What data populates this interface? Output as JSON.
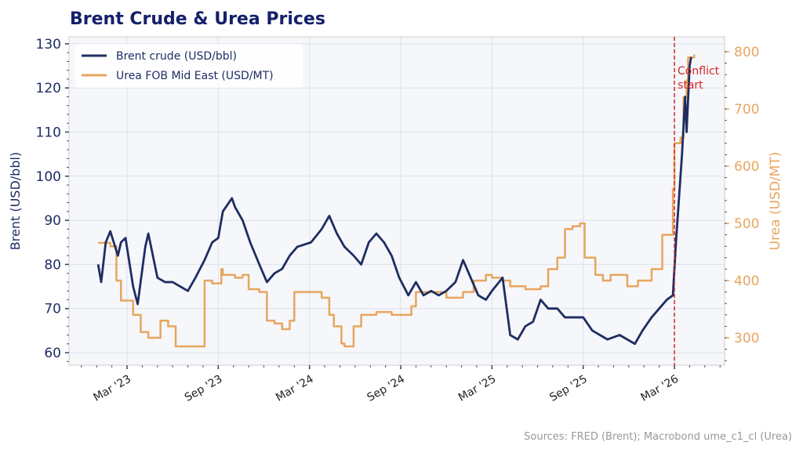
{
  "chart_data": {
    "type": "line",
    "title": "Brent Crude & Urea Prices",
    "source": "Sources: FRED (Brent); Macrobond ume_c1_cl (Urea)",
    "x_unit": "months since Jan 2023",
    "xlim": [
      -1.9,
      41.3
    ],
    "x_ticks": [
      {
        "m": 2,
        "label": "Mar '23"
      },
      {
        "m": 8,
        "label": "Sep '23"
      },
      {
        "m": 14,
        "label": "Mar '24"
      },
      {
        "m": 20,
        "label": "Sep '24"
      },
      {
        "m": 26,
        "label": "Mar '25"
      },
      {
        "m": 32,
        "label": "Sep '25"
      },
      {
        "m": 38,
        "label": "Mar '26"
      }
    ],
    "y_left": {
      "label": "Brent (USD/bbl)",
      "lim": [
        58,
        131
      ],
      "ticks": [
        60,
        70,
        80,
        90,
        100,
        110,
        120,
        130
      ],
      "color": "#1f2d63"
    },
    "y_right": {
      "label": "Urea (USD/MT)",
      "lim": [
        255,
        810
      ],
      "ticks": [
        300,
        400,
        500,
        600,
        700,
        800
      ],
      "color": "#e8a65f"
    },
    "grid": true,
    "legend_position": "top-left",
    "annotation": {
      "m": 38.0,
      "label": "Conflict start",
      "color": "#d62728"
    },
    "series": [
      {
        "name": "Brent crude (USD/bbl)",
        "axis": "left",
        "color": "#1f2d63",
        "x": [
          0.1,
          0.3,
          0.6,
          0.9,
          1.4,
          1.6,
          1.9,
          2.4,
          2.7,
          3.2,
          3.4,
          4.0,
          4.5,
          5.0,
          5.5,
          6.0,
          6.5,
          7.1,
          7.6,
          8.0,
          8.3,
          8.9,
          9.1,
          9.6,
          10.1,
          10.7,
          11.2,
          11.7,
          12.2,
          12.7,
          13.2,
          14.1,
          14.8,
          15.3,
          15.8,
          16.3,
          16.9,
          17.4,
          17.9,
          18.4,
          18.9,
          19.4,
          19.9,
          20.5,
          21.0,
          21.5,
          22.0,
          22.5,
          23.0,
          23.6,
          24.1,
          24.6,
          25.1,
          25.6,
          26.0,
          26.7,
          27.2,
          27.7,
          28.2,
          28.7,
          29.2,
          29.7,
          30.3,
          30.8,
          31.3,
          32.0,
          32.6,
          33.1,
          33.6,
          34.4,
          34.9,
          35.4,
          35.9,
          36.5,
          37.0,
          37.5,
          37.9,
          38.1,
          38.3,
          38.5,
          38.7,
          38.8,
          39.0,
          39.1
        ],
        "values": [
          80,
          76,
          85,
          87.5,
          82,
          85,
          86,
          75,
          71,
          84,
          87,
          77,
          76,
          76,
          75,
          74,
          77,
          81,
          85,
          86,
          92,
          95,
          93,
          90,
          85,
          80,
          76,
          78,
          79,
          82,
          84,
          85,
          88,
          91,
          87,
          84,
          82,
          80,
          85,
          87,
          85,
          82,
          77,
          73,
          76,
          73,
          74,
          73,
          74,
          76,
          81,
          77,
          73,
          72,
          74,
          77,
          64,
          63,
          66,
          67,
          72,
          70,
          70,
          68,
          68,
          68,
          65,
          64,
          63,
          64,
          63,
          62,
          65,
          68,
          70,
          72,
          73,
          85,
          95,
          105,
          118,
          110,
          125,
          127
        ]
      },
      {
        "name": "Urea FOB Mid East (USD/MT)",
        "axis": "right",
        "color": "#e8a65f",
        "x": [
          0.1,
          0.9,
          1.3,
          1.6,
          2.4,
          2.9,
          3.4,
          4.0,
          4.2,
          4.7,
          5.2,
          6.0,
          7.0,
          7.1,
          7.6,
          8.1,
          8.2,
          8.3,
          9.1,
          9.6,
          10.0,
          10.7,
          11.2,
          11.7,
          12.2,
          12.7,
          13.0,
          14.3,
          14.8,
          15.3,
          15.6,
          16.1,
          16.3,
          16.9,
          17.4,
          18.4,
          19.4,
          19.9,
          20.7,
          21.0,
          21.5,
          22.3,
          23.0,
          24.1,
          24.8,
          25.6,
          26.0,
          26.7,
          27.2,
          28.2,
          29.2,
          29.7,
          30.3,
          30.8,
          31.3,
          31.8,
          32.1,
          32.8,
          33.3,
          33.8,
          34.4,
          34.9,
          35.6,
          36.5,
          37.2,
          37.7,
          37.9,
          38.0,
          38.4,
          38.6,
          38.8,
          38.9,
          39.3
        ],
        "values": [
          466,
          460,
          400,
          365,
          340,
          310,
          300,
          300,
          330,
          320,
          285,
          285,
          285,
          400,
          395,
          395,
          420,
          410,
          405,
          410,
          385,
          380,
          330,
          325,
          315,
          330,
          380,
          380,
          370,
          340,
          320,
          290,
          285,
          320,
          340,
          345,
          340,
          340,
          355,
          380,
          380,
          380,
          370,
          380,
          400,
          410,
          405,
          400,
          390,
          385,
          390,
          420,
          440,
          490,
          495,
          500,
          440,
          410,
          400,
          410,
          410,
          390,
          400,
          420,
          480,
          480,
          560,
          640,
          650,
          720,
          750,
          790,
          795
        ]
      }
    ]
  }
}
